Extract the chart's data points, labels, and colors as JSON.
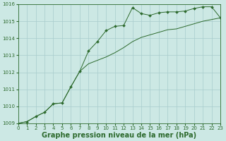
{
  "line1_x": [
    0,
    1,
    2,
    3,
    4,
    5,
    6,
    7,
    8,
    9,
    10,
    11,
    12,
    13,
    14,
    15,
    16,
    17,
    18,
    19,
    20,
    21,
    22,
    23
  ],
  "line1_y": [
    1009.0,
    1009.1,
    1009.4,
    1009.65,
    1010.15,
    1010.2,
    1011.15,
    1012.05,
    1013.25,
    1013.8,
    1014.45,
    1014.7,
    1014.75,
    1015.8,
    1015.45,
    1015.35,
    1015.5,
    1015.55,
    1015.55,
    1015.6,
    1015.75,
    1015.85,
    1015.85,
    1015.2
  ],
  "line2_x": [
    0,
    1,
    2,
    3,
    4,
    5,
    6,
    7,
    8,
    9,
    10,
    11,
    12,
    13,
    14,
    15,
    16,
    17,
    18,
    19,
    20,
    21,
    22,
    23
  ],
  "line2_y": [
    1009.0,
    1009.1,
    1009.4,
    1009.65,
    1010.15,
    1010.2,
    1011.15,
    1012.05,
    1012.5,
    1012.7,
    1012.9,
    1013.15,
    1013.45,
    1013.8,
    1014.05,
    1014.2,
    1014.35,
    1014.5,
    1014.55,
    1014.7,
    1014.85,
    1015.0,
    1015.1,
    1015.2
  ],
  "line_color": "#2d6a2d",
  "marker": "D",
  "marker_size": 2.0,
  "bg_color": "#cce8e4",
  "grid_color": "#a8cccc",
  "xlabel": "Graphe pression niveau de la mer (hPa)",
  "xlim": [
    0,
    23
  ],
  "ylim": [
    1009,
    1016
  ],
  "yticks": [
    1009,
    1010,
    1011,
    1012,
    1013,
    1014,
    1015,
    1016
  ],
  "xticks": [
    0,
    1,
    2,
    3,
    4,
    5,
    6,
    7,
    8,
    9,
    10,
    11,
    12,
    13,
    14,
    15,
    16,
    17,
    18,
    19,
    20,
    21,
    22,
    23
  ],
  "xlabel_fontsize": 7,
  "tick_fontsize": 5.0
}
